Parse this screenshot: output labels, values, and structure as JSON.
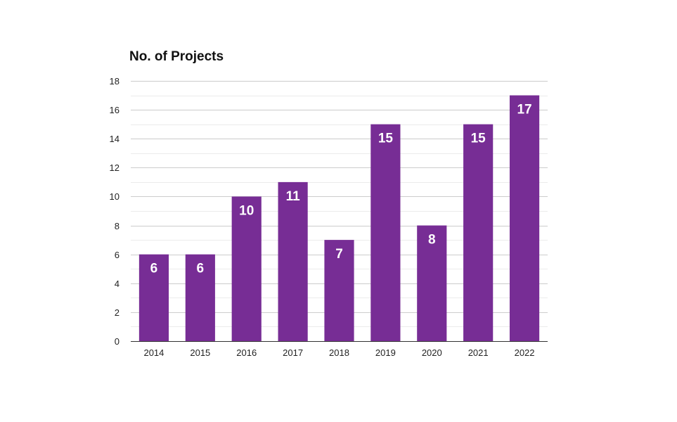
{
  "chart_data": {
    "type": "bar",
    "title": "No. of Projects",
    "xlabel": "",
    "ylabel": "",
    "categories": [
      "2014",
      "2015",
      "2016",
      "2017",
      "2018",
      "2019",
      "2020",
      "2021",
      "2022"
    ],
    "values": [
      6,
      6,
      10,
      11,
      7,
      15,
      8,
      15,
      17
    ],
    "ylim": [
      0,
      18
    ],
    "y_ticks": [
      "0",
      "2",
      "4",
      "6",
      "8",
      "10",
      "12",
      "14",
      "16",
      "18"
    ],
    "y_tick_step": 2,
    "minor_gridlines": true,
    "grid": true,
    "legend": "none",
    "data_labels": "inside-top",
    "colors": {
      "bar": "#772d95",
      "major_grid": "#cccccc",
      "minor_grid": "#ebebeb",
      "axis": "#333333",
      "data_label": "#ffffff"
    }
  }
}
